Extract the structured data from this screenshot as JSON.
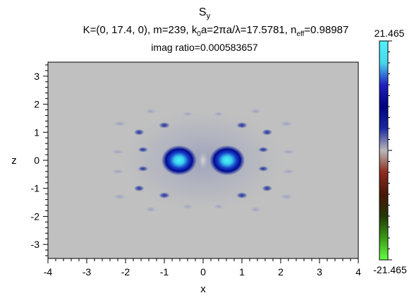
{
  "chart_data": {
    "type": "heatmap",
    "title": {
      "main": "S",
      "main_sub": "y",
      "params": {
        "k_vec": "K=(0, 17.4, 0), m=239, k",
        "k_sub": "0",
        "ka": "a=2πa/λ=17.5781, n",
        "neff_sub": "eff",
        "neff": "=0.98987"
      },
      "imag_ratio": "imag ratio=0.000583657"
    },
    "xlabel": "x",
    "ylabel": "z",
    "xlim": [
      -4,
      4
    ],
    "ylim": [
      -3.5,
      3.5
    ],
    "x_ticks": [
      "-4",
      "-3",
      "-2",
      "-1",
      "0",
      "1",
      "2",
      "3",
      "4"
    ],
    "y_ticks": [
      "3",
      "2",
      "1",
      "0",
      "-1",
      "-2",
      "-3"
    ],
    "colorbar": {
      "max_label": "21.465",
      "min_label": "-21.465",
      "range": [
        -21.465,
        21.465
      ],
      "colormap": [
        "#66ff44",
        "#3a9a14",
        "#243606",
        "#4a1608",
        "#8f2a20",
        "#b9b9b9",
        "#1a2aa0",
        "#000080",
        "#2020c0",
        "#4ad6f0",
        "#4ef2f8"
      ]
    },
    "background_value": 0,
    "background_color": "#c0c0c0",
    "features": [
      {
        "name": "main-lobe-left",
        "x": -0.62,
        "z": 0.0,
        "value": 21.465,
        "sx": 0.38,
        "sz": 0.36
      },
      {
        "name": "main-lobe-right",
        "x": 0.62,
        "z": 0.0,
        "value": 21.465,
        "sx": 0.38,
        "sz": 0.36
      },
      {
        "name": "ring-lobe-1",
        "x": -1.55,
        "z": 0.38,
        "value": 6.0,
        "sx": 0.12,
        "sz": 0.07
      },
      {
        "name": "ring-lobe-2",
        "x": 1.55,
        "z": 0.38,
        "value": 6.0,
        "sx": 0.12,
        "sz": 0.07
      },
      {
        "name": "ring-lobe-3",
        "x": -1.55,
        "z": -0.3,
        "value": 6.0,
        "sx": 0.12,
        "sz": 0.07
      },
      {
        "name": "ring-lobe-4",
        "x": 1.55,
        "z": -0.3,
        "value": 6.0,
        "sx": 0.12,
        "sz": 0.07
      },
      {
        "name": "ring-lobe-5",
        "x": -1.65,
        "z": 1.0,
        "value": 5.0,
        "sx": 0.12,
        "sz": 0.08
      },
      {
        "name": "ring-lobe-6",
        "x": 1.65,
        "z": 1.0,
        "value": 5.0,
        "sx": 0.12,
        "sz": 0.08
      },
      {
        "name": "ring-lobe-7",
        "x": -1.65,
        "z": -1.0,
        "value": 5.0,
        "sx": 0.12,
        "sz": 0.08
      },
      {
        "name": "ring-lobe-8",
        "x": 1.65,
        "z": -1.0,
        "value": 5.0,
        "sx": 0.12,
        "sz": 0.08
      },
      {
        "name": "ring-lobe-9",
        "x": -1.0,
        "z": 1.25,
        "value": 4.0,
        "sx": 0.13,
        "sz": 0.08
      },
      {
        "name": "ring-lobe-10",
        "x": 1.0,
        "z": 1.25,
        "value": 4.0,
        "sx": 0.13,
        "sz": 0.08
      },
      {
        "name": "ring-lobe-11",
        "x": -1.0,
        "z": -1.25,
        "value": 4.0,
        "sx": 0.13,
        "sz": 0.08
      },
      {
        "name": "ring-lobe-12",
        "x": 1.0,
        "z": -1.25,
        "value": 4.0,
        "sx": 0.13,
        "sz": 0.08
      },
      {
        "name": "outer-lobe-1",
        "x": -2.2,
        "z": 0.3,
        "value": 2.0,
        "sx": 0.14,
        "sz": 0.06
      },
      {
        "name": "outer-lobe-2",
        "x": 2.2,
        "z": 0.3,
        "value": 2.0,
        "sx": 0.14,
        "sz": 0.06
      },
      {
        "name": "outer-lobe-3",
        "x": -2.2,
        "z": -0.4,
        "value": 2.0,
        "sx": 0.14,
        "sz": 0.06
      },
      {
        "name": "outer-lobe-4",
        "x": 2.2,
        "z": -0.4,
        "value": 2.0,
        "sx": 0.14,
        "sz": 0.06
      },
      {
        "name": "outer-lobe-5",
        "x": -2.15,
        "z": 1.3,
        "value": 1.5,
        "sx": 0.14,
        "sz": 0.07
      },
      {
        "name": "outer-lobe-6",
        "x": 2.15,
        "z": 1.3,
        "value": 1.5,
        "sx": 0.14,
        "sz": 0.07
      },
      {
        "name": "outer-lobe-7",
        "x": -2.15,
        "z": -1.3,
        "value": 1.5,
        "sx": 0.14,
        "sz": 0.07
      },
      {
        "name": "outer-lobe-8",
        "x": 2.15,
        "z": -1.3,
        "value": 1.5,
        "sx": 0.14,
        "sz": 0.07
      },
      {
        "name": "outer-lobe-9",
        "x": -1.35,
        "z": 1.75,
        "value": 1.5,
        "sx": 0.12,
        "sz": 0.07
      },
      {
        "name": "outer-lobe-10",
        "x": 1.35,
        "z": 1.75,
        "value": 1.5,
        "sx": 0.12,
        "sz": 0.07
      },
      {
        "name": "outer-lobe-11",
        "x": -1.35,
        "z": -1.75,
        "value": 1.5,
        "sx": 0.12,
        "sz": 0.07
      },
      {
        "name": "outer-lobe-12",
        "x": 1.35,
        "z": -1.75,
        "value": 1.5,
        "sx": 0.12,
        "sz": 0.07
      },
      {
        "name": "outer-lobe-13",
        "x": -0.4,
        "z": 1.65,
        "value": 1.2,
        "sx": 0.12,
        "sz": 0.06
      },
      {
        "name": "outer-lobe-14",
        "x": 0.4,
        "z": 1.65,
        "value": 1.2,
        "sx": 0.12,
        "sz": 0.06
      },
      {
        "name": "outer-lobe-15",
        "x": -0.4,
        "z": -1.65,
        "value": 1.2,
        "sx": 0.12,
        "sz": 0.06
      },
      {
        "name": "outer-lobe-16",
        "x": 0.4,
        "z": -1.65,
        "value": 1.2,
        "sx": 0.12,
        "sz": 0.06
      }
    ],
    "grid": false
  }
}
